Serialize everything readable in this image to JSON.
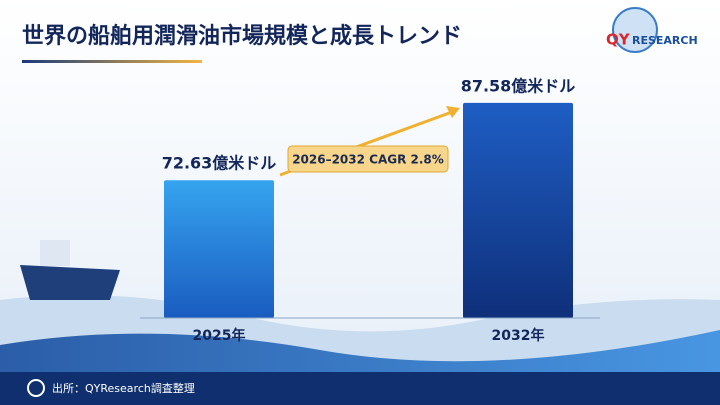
{
  "chart_data": {
    "type": "bar",
    "title": "世界の船舶用潤滑油市場規模と成長トレンド",
    "logo": [
      "QY",
      "RESEARCH"
    ],
    "categories": [
      "2025年",
      "2032年"
    ],
    "values": [
      72.63,
      87.58
    ],
    "value_labels": [
      "72.63億米ドル",
      "87.58億米ドル"
    ],
    "colors": [
      "#2a8fe0",
      "#1a4fae"
    ],
    "ylim": [
      46,
      92
    ],
    "annotation": "2026–2032 CAGR 2.8%",
    "source": "出所：QYResearch調査整理"
  }
}
